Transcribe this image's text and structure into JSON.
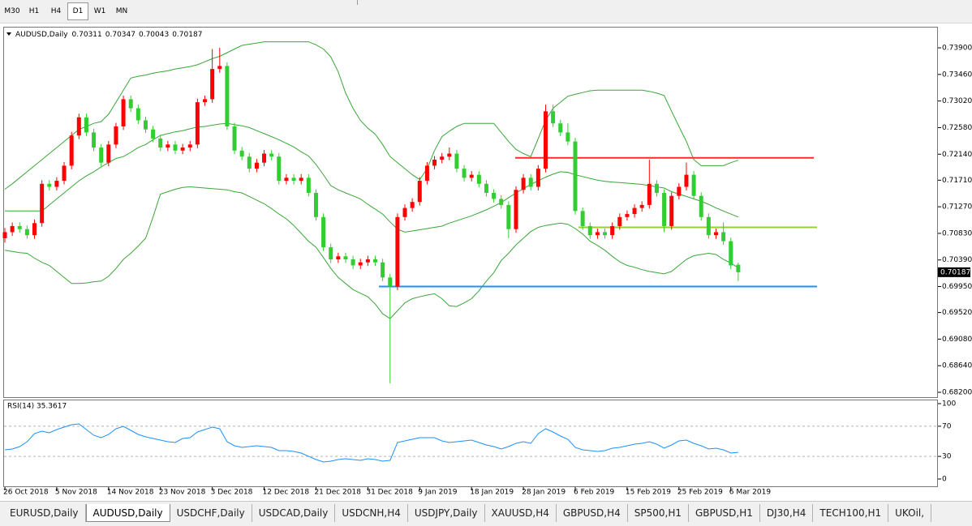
{
  "toolbar": {
    "timeframes": [
      "M30",
      "H1",
      "H4",
      "D1",
      "W1",
      "MN"
    ],
    "active": 3
  },
  "chart_data": [
    {
      "type": "candlestick",
      "title": "AUDUSD,Daily",
      "up_color": "#ff0000",
      "down_color": "#32cd32",
      "wick_color": "#32cd32",
      "ylim": [
        0.6812,
        0.74249
      ],
      "yticks": [
        {
          "value": 0.739,
          "label": "0.73900"
        },
        {
          "value": 0.7346,
          "label": "0.73460"
        },
        {
          "value": 0.7302,
          "label": "0.73020"
        },
        {
          "value": 0.7258,
          "label": "0.72580"
        },
        {
          "value": 0.7214,
          "label": "0.72140"
        },
        {
          "value": 0.7171,
          "label": "0.71710"
        },
        {
          "value": 0.7127,
          "label": "0.71270"
        },
        {
          "value": 0.7083,
          "label": "0.70830"
        },
        {
          "value": 0.7039,
          "label": "0.70390"
        },
        {
          "value": 0.6995,
          "label": "0.69950"
        },
        {
          "value": 0.6952,
          "label": "0.69520"
        },
        {
          "value": 0.6908,
          "label": "0.69080"
        },
        {
          "value": 0.6864,
          "label": "0.68640"
        },
        {
          "value": 0.682,
          "label": "0.68200"
        }
      ],
      "x_labels": [
        "26 Oct 2018",
        "5 Nov 2018",
        "14 Nov 2018",
        "23 Nov 2018",
        "3 Dec 2018",
        "12 Dec 2018",
        "21 Dec 2018",
        "31 Dec 2018",
        "9 Jan 2019",
        "18 Jan 2019",
        "28 Jan 2019",
        "6 Feb 2019",
        "15 Feb 2019",
        "25 Feb 2019",
        "6 Mar 2019"
      ],
      "candles": [
        [
          0.7075,
          0.7092,
          0.7068,
          0.7085
        ],
        [
          0.7085,
          0.7101,
          0.7079,
          0.7095
        ],
        [
          0.7095,
          0.7101,
          0.7084,
          0.709
        ],
        [
          0.709,
          0.7096,
          0.7074,
          0.708
        ],
        [
          0.708,
          0.7106,
          0.7074,
          0.71
        ],
        [
          0.71,
          0.7171,
          0.7094,
          0.7165
        ],
        [
          0.7165,
          0.7171,
          0.7154,
          0.716
        ],
        [
          0.716,
          0.7176,
          0.7154,
          0.717
        ],
        [
          0.717,
          0.7201,
          0.7164,
          0.7195
        ],
        [
          0.7195,
          0.7251,
          0.7189,
          0.7245
        ],
        [
          0.7245,
          0.7281,
          0.7239,
          0.7275
        ],
        [
          0.7275,
          0.7281,
          0.7244,
          0.725
        ],
        [
          0.725,
          0.7256,
          0.7219,
          0.7225
        ],
        [
          0.7225,
          0.7231,
          0.7194,
          0.72
        ],
        [
          0.72,
          0.7236,
          0.7194,
          0.723
        ],
        [
          0.723,
          0.7266,
          0.7224,
          0.726
        ],
        [
          0.726,
          0.7311,
          0.7254,
          0.7305
        ],
        [
          0.7305,
          0.7311,
          0.7284,
          0.729
        ],
        [
          0.729,
          0.7296,
          0.7264,
          0.727
        ],
        [
          0.727,
          0.7276,
          0.7249,
          0.7255
        ],
        [
          0.7255,
          0.7261,
          0.7234,
          0.724
        ],
        [
          0.724,
          0.7246,
          0.7219,
          0.7225
        ],
        [
          0.7225,
          0.7236,
          0.7219,
          0.723
        ],
        [
          0.723,
          0.7236,
          0.7214,
          0.722
        ],
        [
          0.722,
          0.7231,
          0.7214,
          0.7225
        ],
        [
          0.7225,
          0.7236,
          0.7219,
          0.723
        ],
        [
          0.723,
          0.7306,
          0.7224,
          0.73
        ],
        [
          0.73,
          0.7311,
          0.7294,
          0.7305
        ],
        [
          0.7305,
          0.7388,
          0.7299,
          0.7355
        ],
        [
          0.7355,
          0.739,
          0.7349,
          0.736
        ],
        [
          0.736,
          0.7366,
          0.7254,
          0.726
        ],
        [
          0.726,
          0.7266,
          0.7214,
          0.722
        ],
        [
          0.722,
          0.7226,
          0.7204,
          0.721
        ],
        [
          0.721,
          0.7216,
          0.7184,
          0.719
        ],
        [
          0.719,
          0.7206,
          0.7184,
          0.72
        ],
        [
          0.72,
          0.7221,
          0.7194,
          0.7215
        ],
        [
          0.7215,
          0.7221,
          0.7204,
          0.721
        ],
        [
          0.721,
          0.7216,
          0.7164,
          0.717
        ],
        [
          0.717,
          0.7181,
          0.7164,
          0.7175
        ],
        [
          0.7175,
          0.7181,
          0.7164,
          0.717
        ],
        [
          0.717,
          0.7181,
          0.7164,
          0.7175
        ],
        [
          0.7175,
          0.7181,
          0.7144,
          0.715
        ],
        [
          0.715,
          0.7156,
          0.7104,
          0.711
        ],
        [
          0.711,
          0.7116,
          0.7054,
          0.706
        ],
        [
          0.706,
          0.7066,
          0.7034,
          0.704
        ],
        [
          0.704,
          0.7051,
          0.7034,
          0.7045
        ],
        [
          0.7045,
          0.7051,
          0.7034,
          0.704
        ],
        [
          0.704,
          0.7046,
          0.7024,
          0.703
        ],
        [
          0.703,
          0.7041,
          0.7024,
          0.7035
        ],
        [
          0.7035,
          0.7046,
          0.7029,
          0.704
        ],
        [
          0.704,
          0.7046,
          0.7029,
          0.7035
        ],
        [
          0.7035,
          0.7041,
          0.7004,
          0.701
        ],
        [
          0.701,
          0.7016,
          0.6835,
          0.6995
        ],
        [
          0.6995,
          0.7116,
          0.6989,
          0.711
        ],
        [
          0.711,
          0.7131,
          0.7104,
          0.7125
        ],
        [
          0.7125,
          0.7141,
          0.7119,
          0.7135
        ],
        [
          0.7135,
          0.7176,
          0.7129,
          0.717
        ],
        [
          0.717,
          0.7201,
          0.7164,
          0.7195
        ],
        [
          0.7195,
          0.7211,
          0.7189,
          0.7205
        ],
        [
          0.7205,
          0.7216,
          0.7199,
          0.721
        ],
        [
          0.721,
          0.7225,
          0.7204,
          0.7215
        ],
        [
          0.7215,
          0.7221,
          0.7184,
          0.719
        ],
        [
          0.719,
          0.7196,
          0.7169,
          0.7175
        ],
        [
          0.7175,
          0.7186,
          0.7169,
          0.718
        ],
        [
          0.718,
          0.7186,
          0.7159,
          0.7165
        ],
        [
          0.7165,
          0.7171,
          0.7144,
          0.715
        ],
        [
          0.715,
          0.7156,
          0.7134,
          0.714
        ],
        [
          0.714,
          0.7146,
          0.7124,
          0.713
        ],
        [
          0.713,
          0.7136,
          0.7075,
          0.709
        ],
        [
          0.709,
          0.7161,
          0.7084,
          0.7155
        ],
        [
          0.7155,
          0.7181,
          0.7149,
          0.7175
        ],
        [
          0.7175,
          0.7181,
          0.7154,
          0.716
        ],
        [
          0.716,
          0.7196,
          0.7154,
          0.719
        ],
        [
          0.719,
          0.7296,
          0.7184,
          0.7285
        ],
        [
          0.7285,
          0.7296,
          0.7259,
          0.7265
        ],
        [
          0.7265,
          0.7271,
          0.7244,
          0.725
        ],
        [
          0.725,
          0.7265,
          0.7229,
          0.7235
        ],
        [
          0.7235,
          0.7241,
          0.7114,
          0.712
        ],
        [
          0.712,
          0.7126,
          0.7089,
          0.7095
        ],
        [
          0.7095,
          0.7101,
          0.7074,
          0.708
        ],
        [
          0.708,
          0.7091,
          0.7074,
          0.7085
        ],
        [
          0.7085,
          0.7091,
          0.7074,
          0.708
        ],
        [
          0.708,
          0.7101,
          0.7074,
          0.7095
        ],
        [
          0.7095,
          0.7116,
          0.7089,
          0.711
        ],
        [
          0.711,
          0.7121,
          0.7104,
          0.7115
        ],
        [
          0.7115,
          0.7131,
          0.7109,
          0.7125
        ],
        [
          0.7125,
          0.7136,
          0.7119,
          0.713
        ],
        [
          0.713,
          0.7205,
          0.7124,
          0.7165
        ],
        [
          0.7165,
          0.7171,
          0.7144,
          0.715
        ],
        [
          0.715,
          0.7156,
          0.7085,
          0.7095
        ],
        [
          0.7095,
          0.7151,
          0.7089,
          0.7145
        ],
        [
          0.7145,
          0.7166,
          0.7139,
          0.716
        ],
        [
          0.716,
          0.72,
          0.7154,
          0.718
        ],
        [
          0.718,
          0.7186,
          0.7139,
          0.7145
        ],
        [
          0.7145,
          0.7151,
          0.7104,
          0.711
        ],
        [
          0.711,
          0.7116,
          0.7074,
          0.708
        ],
        [
          0.708,
          0.7091,
          0.7074,
          0.7085
        ],
        [
          0.7085,
          0.7101,
          0.7064,
          0.707
        ],
        [
          0.707,
          0.7076,
          0.7024,
          0.703
        ],
        [
          0.70311,
          0.70347,
          0.70043,
          0.70187
        ]
      ],
      "overlays": [
        {
          "color": "#3aa63a",
          "values": [
            0.7156,
            0.7165,
            0.7175,
            0.7185,
            0.7195,
            0.7205,
            0.7215,
            0.7225,
            0.7235,
            0.7245,
            0.7255,
            0.726,
            0.7265,
            0.7268,
            0.728,
            0.73,
            0.732,
            0.734,
            0.7343,
            0.7345,
            0.7348,
            0.735,
            0.7352,
            0.7355,
            0.7357,
            0.7359,
            0.7362,
            0.7367,
            0.7372,
            0.7376,
            0.7382,
            0.7388,
            0.7394,
            0.7396,
            0.7398,
            0.74,
            0.74,
            0.74,
            0.74,
            0.74,
            0.74,
            0.74,
            0.7395,
            0.7388,
            0.7375,
            0.735,
            0.7315,
            0.729,
            0.727,
            0.7257,
            0.7247,
            0.723,
            0.721,
            0.72,
            0.719,
            0.718,
            0.7172,
            0.719,
            0.722,
            0.7243,
            0.7252,
            0.726,
            0.7265,
            0.7265,
            0.7265,
            0.7265,
            0.7265,
            0.725,
            0.7235,
            0.7222,
            0.7215,
            0.721,
            0.724,
            0.727,
            0.729,
            0.73,
            0.731,
            0.7313,
            0.7316,
            0.7319,
            0.732,
            0.732,
            0.732,
            0.732,
            0.732,
            0.732,
            0.732,
            0.7318,
            0.7315,
            0.7311,
            0.7285,
            0.726,
            0.7235,
            0.7205,
            0.7195,
            0.7195,
            0.7195,
            0.7195,
            0.72,
            0.7204
          ]
        },
        {
          "color": "#3aa63a",
          "values": [
            0.712,
            0.712,
            0.712,
            0.712,
            0.712,
            0.712,
            0.713,
            0.714,
            0.715,
            0.716,
            0.717,
            0.7178,
            0.7185,
            0.7193,
            0.72,
            0.7207,
            0.721,
            0.7217,
            0.7225,
            0.723,
            0.7238,
            0.7245,
            0.7248,
            0.7251,
            0.7253,
            0.7256,
            0.7259,
            0.726,
            0.7262,
            0.7264,
            0.7265,
            0.7263,
            0.7261,
            0.7258,
            0.7253,
            0.7248,
            0.7243,
            0.7238,
            0.7232,
            0.7226,
            0.7218,
            0.7211,
            0.7197,
            0.718,
            0.7162,
            0.7155,
            0.715,
            0.7145,
            0.714,
            0.7131,
            0.7123,
            0.7115,
            0.7102,
            0.709,
            0.7085,
            0.7087,
            0.7089,
            0.7091,
            0.7093,
            0.7095,
            0.71,
            0.7104,
            0.7108,
            0.7112,
            0.7117,
            0.7122,
            0.7128,
            0.7134,
            0.7142,
            0.715,
            0.7157,
            0.7164,
            0.717,
            0.7176,
            0.7181,
            0.7185,
            0.7184,
            0.718,
            0.7177,
            0.7174,
            0.7171,
            0.7169,
            0.7168,
            0.7167,
            0.7166,
            0.7165,
            0.7164,
            0.7162,
            0.716,
            0.7158,
            0.7152,
            0.7148,
            0.7144,
            0.714,
            0.7136,
            0.7131,
            0.7125,
            0.712,
            0.7115,
            0.711
          ]
        },
        {
          "color": "#3aa63a",
          "values": [
            0.7055,
            0.7053,
            0.7051,
            0.705,
            0.7042,
            0.7035,
            0.703,
            0.702,
            0.701,
            0.7,
            0.7,
            0.7001,
            0.7003,
            0.7004,
            0.7012,
            0.7025,
            0.704,
            0.705,
            0.7062,
            0.7075,
            0.711,
            0.7148,
            0.7152,
            0.7156,
            0.7159,
            0.716,
            0.7159,
            0.7158,
            0.7157,
            0.7156,
            0.7155,
            0.7152,
            0.715,
            0.7144,
            0.7138,
            0.7132,
            0.7124,
            0.7115,
            0.7107,
            0.7096,
            0.7083,
            0.707,
            0.706,
            0.7043,
            0.7025,
            0.701,
            0.7,
            0.699,
            0.6984,
            0.6978,
            0.6966,
            0.695,
            0.6942,
            0.6955,
            0.6968,
            0.6975,
            0.6978,
            0.6981,
            0.6983,
            0.6975,
            0.6963,
            0.6962,
            0.6968,
            0.6975,
            0.6988,
            0.7004,
            0.7018,
            0.7038,
            0.705,
            0.7064,
            0.7075,
            0.7086,
            0.7093,
            0.7096,
            0.7098,
            0.71,
            0.7098,
            0.7091,
            0.7082,
            0.707,
            0.7063,
            0.7055,
            0.7045,
            0.7036,
            0.703,
            0.7027,
            0.7023,
            0.702,
            0.7018,
            0.7016,
            0.702,
            0.703,
            0.704,
            0.7046,
            0.7048,
            0.705,
            0.7048,
            0.704,
            0.7034,
            0.7026
          ]
        }
      ],
      "hlines": [
        {
          "value": 0.7208,
          "color": "#ff2a2a"
        },
        {
          "value": 0.7093,
          "color": "#9acd32"
        },
        {
          "value": 0.6995,
          "color": "#1e90ff"
        }
      ]
    },
    {
      "type": "line",
      "title": "RSI(14) 35.3617",
      "ylim": [
        0,
        100
      ],
      "yticks": [
        0,
        30,
        70,
        100
      ],
      "levels": [
        30,
        70
      ],
      "series": [
        {
          "color": "#1e90ff",
          "values": [
            38.7,
            39.8,
            43,
            49.5,
            60.2,
            63.4,
            61.3,
            65.6,
            68.8,
            72,
            73.1,
            65.6,
            58,
            54.8,
            59.1,
            66.7,
            69.9,
            64.5,
            59.1,
            55.9,
            53.8,
            51.6,
            49.5,
            48.4,
            53.8,
            54.8,
            62.4,
            65.6,
            68.8,
            66.7,
            49.5,
            44.1,
            41.9,
            43,
            44.1,
            43,
            41.9,
            37.6,
            37.6,
            36.6,
            34.4,
            30.1,
            25.8,
            22.6,
            23.7,
            25.8,
            26.9,
            25.8,
            24.7,
            26.9,
            25.8,
            23.7,
            24.7,
            48.4,
            50.5,
            52.7,
            54.8,
            54.8,
            54.8,
            50.5,
            48.4,
            49.5,
            50.5,
            51.6,
            48.4,
            45.2,
            43,
            39.8,
            43,
            47.3,
            49.5,
            47.3,
            60.2,
            66.7,
            62.4,
            57,
            52.7,
            41.9,
            38.7,
            37.6,
            36.6,
            37.6,
            40.9,
            41.9,
            44.1,
            46.2,
            47.3,
            49.5,
            46.2,
            40.9,
            45.2,
            50.5,
            51.6,
            47.3,
            44.1,
            39.8,
            40.9,
            38.7,
            34.4,
            35.3617
          ]
        }
      ]
    }
  ],
  "tabs": [
    "EURUSD,Daily",
    "AUDUSD,Daily",
    "USDCHF,Daily",
    "USDCAD,Daily",
    "USDCNH,H4",
    "USDJPY,Daily",
    "XAUUSD,H4",
    "GBPUSD,H4",
    "SP500,H1",
    "GBPUSD,H1",
    "DJ30,H4",
    "TECH100,H1",
    "UKOil,"
  ],
  "active_tab": 1
}
